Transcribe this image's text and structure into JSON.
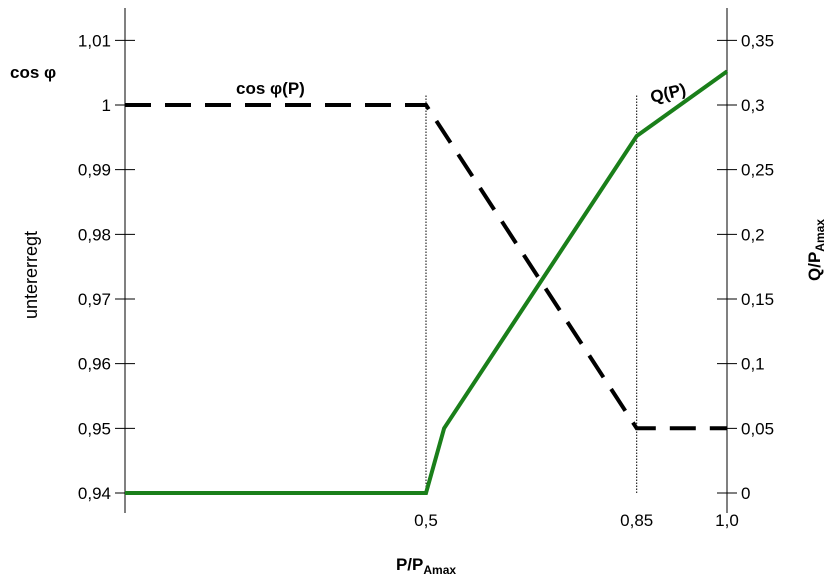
{
  "chart_data": {
    "type": "line",
    "x_axis": {
      "label_main": "P/P",
      "label_sub": "Amax",
      "ticks": [
        {
          "value": 0.5,
          "label": "0,5"
        },
        {
          "value": 0.85,
          "label": "0,85"
        },
        {
          "value": 1.0,
          "label": "1,0"
        }
      ]
    },
    "y_left": {
      "title": "cos φ",
      "side_label": "untererregt",
      "range": [
        0.94,
        1.015
      ],
      "ticks": [
        {
          "value": 0.94,
          "label": "0,94"
        },
        {
          "value": 0.95,
          "label": "0,95"
        },
        {
          "value": 0.96,
          "label": "0,96"
        },
        {
          "value": 0.97,
          "label": "0,97"
        },
        {
          "value": 0.98,
          "label": "0,98"
        },
        {
          "value": 0.99,
          "label": "0,99"
        },
        {
          "value": 1.0,
          "label": "1"
        },
        {
          "value": 1.01,
          "label": "1,01"
        }
      ]
    },
    "y_right": {
      "label_main": "Q/P",
      "label_sub": "Amax",
      "range": [
        0,
        0.375
      ],
      "ticks": [
        {
          "value": 0,
          "label": "0"
        },
        {
          "value": 0.05,
          "label": "0,05"
        },
        {
          "value": 0.1,
          "label": "0,1"
        },
        {
          "value": 0.15,
          "label": "0,15"
        },
        {
          "value": 0.2,
          "label": "0,2"
        },
        {
          "value": 0.25,
          "label": "0,25"
        },
        {
          "value": 0.3,
          "label": "0,3"
        },
        {
          "value": 0.35,
          "label": "0,35"
        }
      ]
    },
    "series": [
      {
        "name": "cos φ(P)",
        "axis": "left",
        "style": "dashed",
        "color": "#000000",
        "points": [
          [
            0,
            1.0
          ],
          [
            0.5,
            1.0
          ],
          [
            0.85,
            0.95
          ],
          [
            1.0,
            0.95
          ]
        ]
      },
      {
        "name": "Q(P)",
        "axis": "right",
        "style": "solid",
        "color": "#1a7f1a",
        "points": [
          [
            0,
            0
          ],
          [
            0.5,
            0
          ],
          [
            0.53,
            0.05
          ],
          [
            0.85,
            0.276
          ],
          [
            1.0,
            0.326
          ]
        ]
      }
    ],
    "reference_lines_x": [
      0.5,
      0.85
    ]
  }
}
